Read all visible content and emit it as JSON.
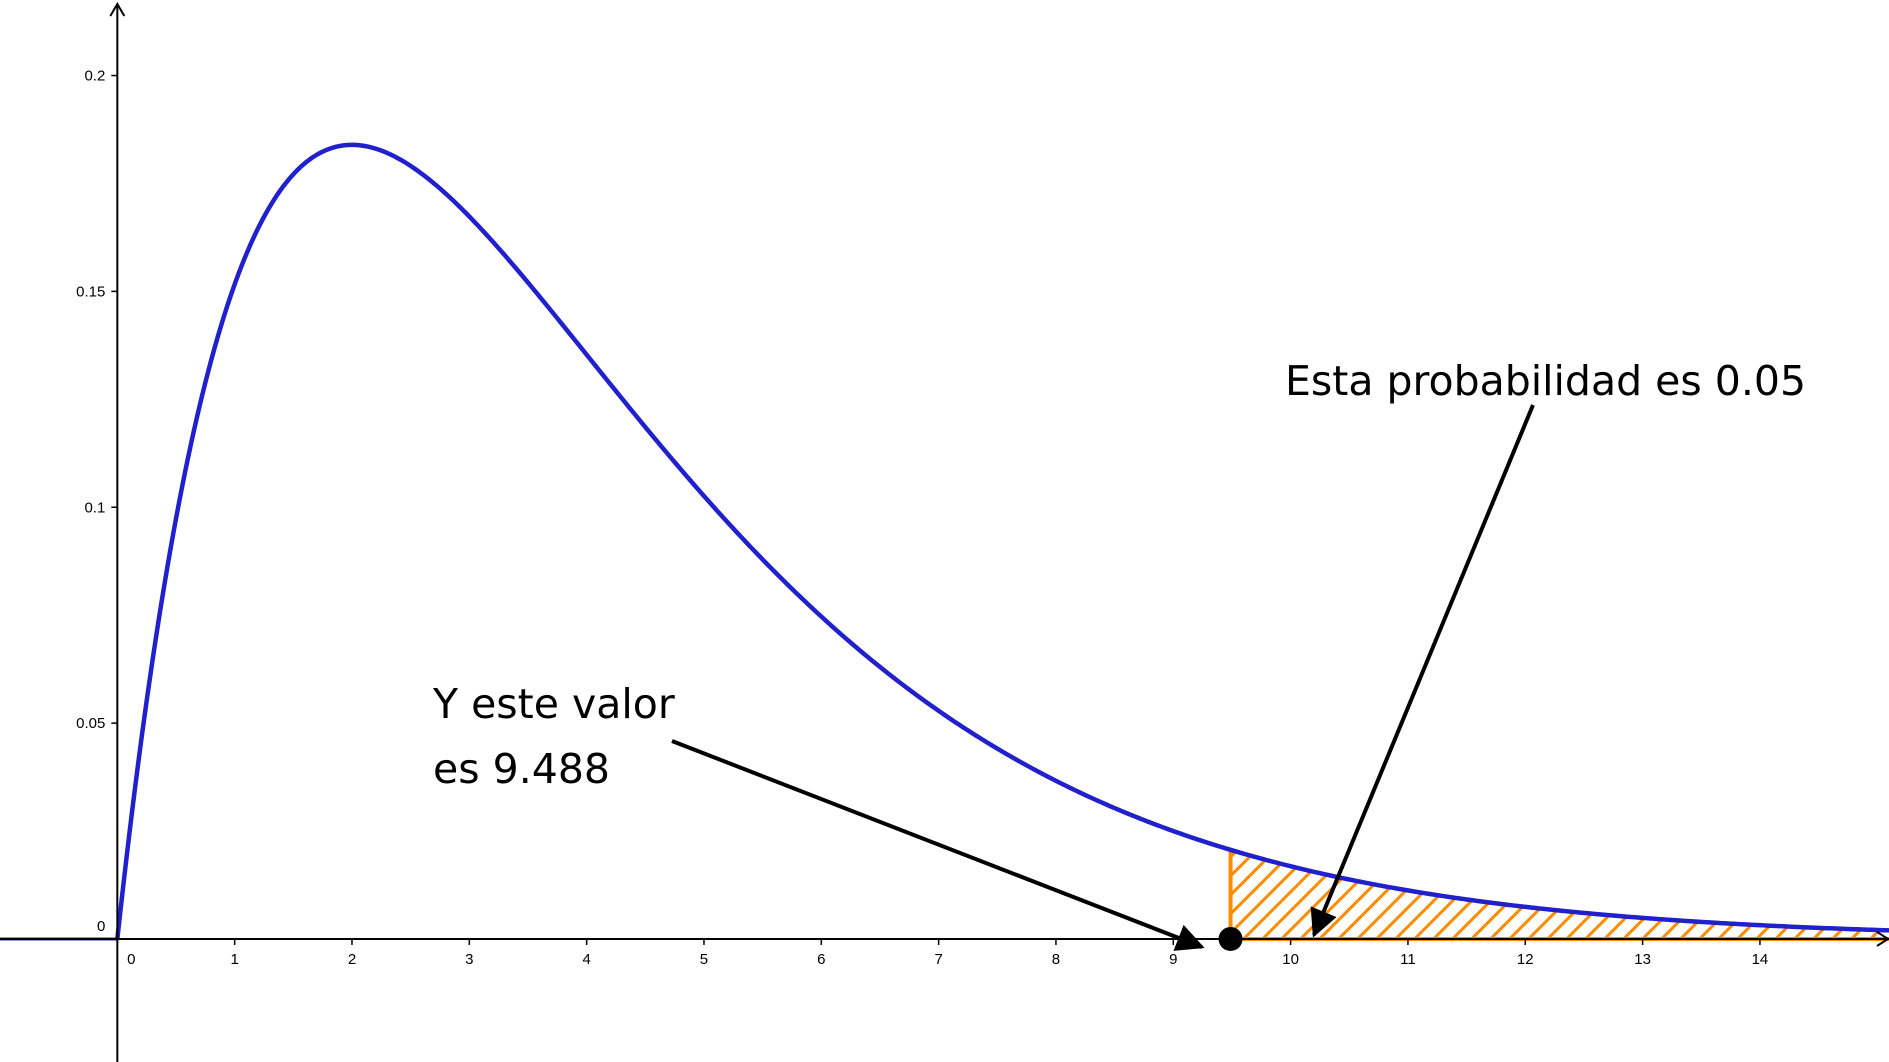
{
  "chart_data": {
    "type": "area",
    "distribution": "chi-square",
    "degrees_of_freedom": 4,
    "xlim": [
      -1,
      15.1
    ],
    "ylim": [
      -0.0285,
      0.2175
    ],
    "x_ticks": [
      0,
      1,
      2,
      3,
      4,
      5,
      6,
      7,
      8,
      9,
      10,
      11,
      12,
      13,
      14
    ],
    "y_ticks": [
      0,
      0.05,
      0.1,
      0.15,
      0.2
    ],
    "x_tick_labels": [
      "0",
      "1",
      "2",
      "3",
      "4",
      "5",
      "6",
      "7",
      "8",
      "9",
      "10",
      "11",
      "12",
      "13",
      "14"
    ],
    "y_tick_labels": [
      "0",
      "0.05",
      "0.1",
      "0.15",
      "0.2"
    ],
    "critical_value": 9.488,
    "shaded_region": {
      "from": 9.488,
      "to": 15.1
    },
    "series": [
      {
        "x": [
          0,
          0.5,
          1,
          1.5,
          2,
          2.5,
          3,
          3.5,
          4,
          4.5,
          5,
          5.5,
          6,
          6.5,
          7,
          7.5,
          8,
          8.5,
          9,
          9.5,
          10,
          10.5,
          11,
          11.5,
          12,
          12.5,
          13,
          13.5,
          14,
          14.5,
          15
        ],
        "y": [
          0,
          0.0974,
          0.1516,
          0.1771,
          0.1839,
          0.1791,
          0.1673,
          0.1521,
          0.1353,
          0.1185,
          0.1026,
          0.088,
          0.0747,
          0.063,
          0.0528,
          0.0441,
          0.0366,
          0.0303,
          0.025,
          0.0206,
          0.0168,
          0.0138,
          0.0113,
          0.0091,
          0.0074,
          0.0061,
          0.0049,
          0.0039,
          0.0032,
          0.0026,
          0.0021
        ]
      }
    ],
    "colors": {
      "curve": "#2020cc",
      "shade": "#ff8c00",
      "axis": "#000000",
      "arrow": "#000000"
    },
    "grid": false,
    "legend": "none",
    "annotations": [
      {
        "lines": [
          "Esta probabilidad es 0.05"
        ],
        "points_to": "shaded-area"
      },
      {
        "lines": [
          "Y este valor",
          "es 9.488"
        ],
        "points_to": "critical-point"
      }
    ]
  }
}
